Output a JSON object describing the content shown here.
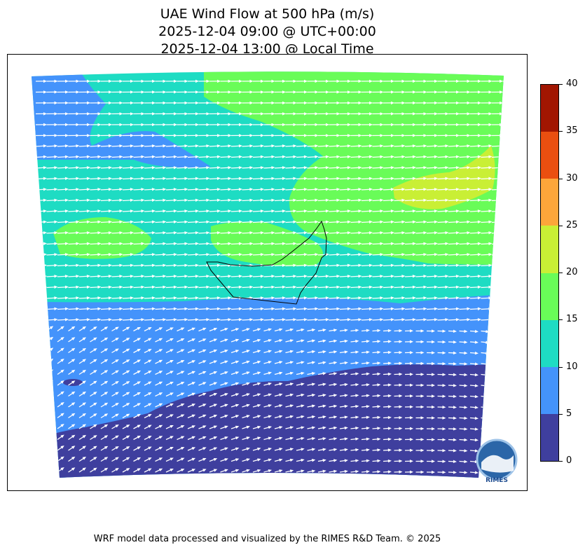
{
  "title": {
    "line1": "UAE Wind Flow at 500 hPa (m/s)",
    "line2": "2025-12-04 09:00 @ UTC+00:00",
    "line3": "2025-12-04 13:00 @ Local Time"
  },
  "colorbar": {
    "levels": [
      {
        "from": 0,
        "to": 5,
        "color": "#3f3f9e"
      },
      {
        "from": 5,
        "to": 10,
        "color": "#4493fb"
      },
      {
        "from": 10,
        "to": 15,
        "color": "#1edcc3"
      },
      {
        "from": 15,
        "to": 20,
        "color": "#69fc58"
      },
      {
        "from": 20,
        "to": 25,
        "color": "#c9ef35"
      },
      {
        "from": 25,
        "to": 30,
        "color": "#fca63a"
      },
      {
        "from": 30,
        "to": 35,
        "color": "#ea4f10"
      },
      {
        "from": 35,
        "to": 40,
        "color": "#a11601"
      }
    ],
    "ticks": [
      "0",
      "5",
      "10",
      "15",
      "20",
      "25",
      "30",
      "35",
      "40"
    ]
  },
  "logo": {
    "text": "RIMES"
  },
  "footer": "WRF model data processed and visualized by the RIMES R&D Team. © 2025"
}
